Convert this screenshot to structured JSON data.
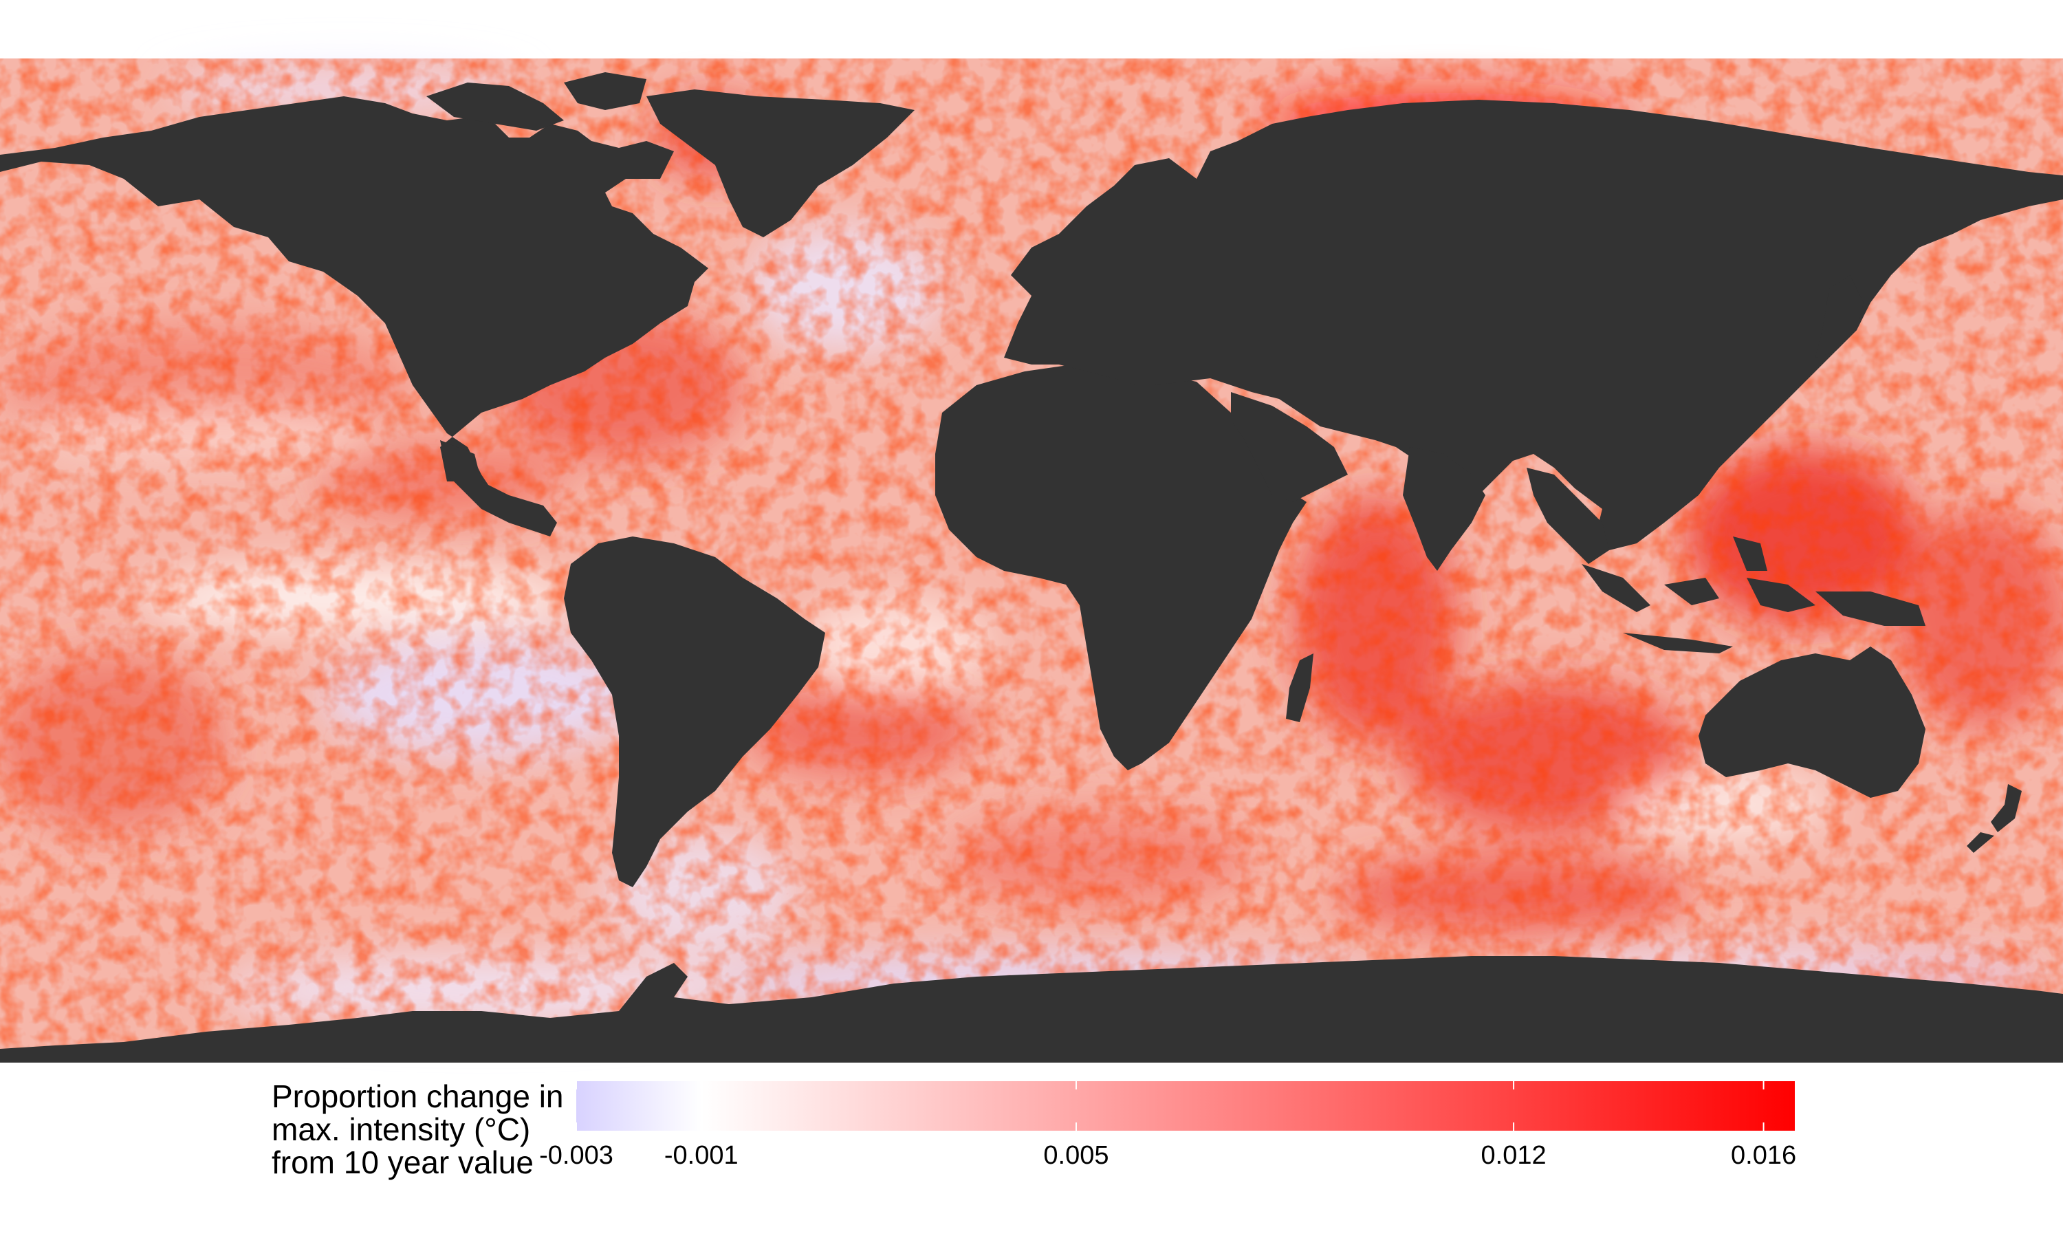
{
  "legend": {
    "title_lines": [
      "Proportion change in",
      "max. intensity (°C)",
      "from 10 year value"
    ],
    "min": -0.003,
    "max": 0.0165,
    "colors": [
      "#d8d2ff",
      "#ffffff",
      "#ff0000"
    ],
    "ticks": [
      {
        "value": -0.003,
        "label": "-0.003"
      },
      {
        "value": -0.001,
        "label": "-0.001"
      },
      {
        "value": 0.005,
        "label": "0.005"
      },
      {
        "value": 0.012,
        "label": "0.012"
      },
      {
        "value": 0.016,
        "label": "0.016"
      }
    ]
  },
  "colors": {
    "land": "#333333",
    "ocean_base": "#f6b3a6",
    "hot": "#ff2a1a",
    "cool": "#dcd6ff",
    "background": "#ffffff"
  }
}
